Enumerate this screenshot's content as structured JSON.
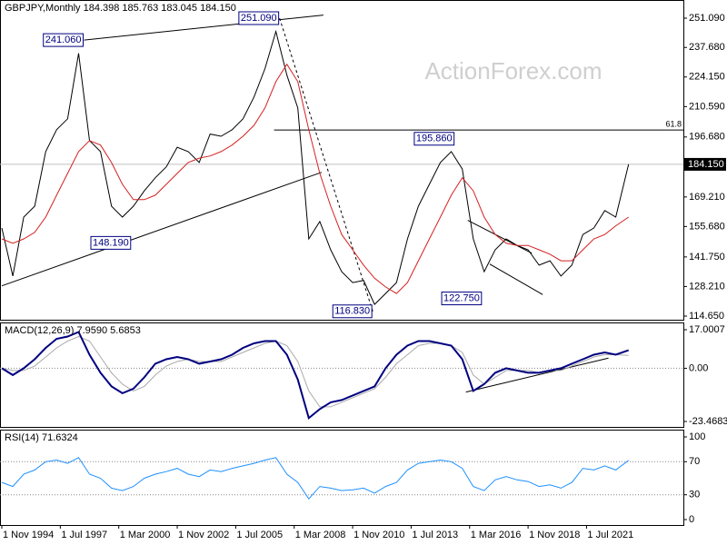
{
  "chart_data": [
    {
      "type": "line",
      "title": "GBPJPY,Monthly  184.398 185.763 183.045 184.150",
      "watermark": "ActionForex.com",
      "x": [
        "1 Nov 1994",
        "1 May 1995",
        "1 Nov 1995",
        "1 May 1996",
        "1 Nov 1996",
        "1 May 1997",
        "1 Nov 1997",
        "1 May 1998",
        "1 Nov 1998",
        "1 May 1999",
        "1 Nov 1999",
        "1 May 2000",
        "1 Nov 2000",
        "1 May 2001",
        "1 Nov 2001",
        "1 May 2002",
        "1 Nov 2002",
        "1 May 2003",
        "1 Nov 2003",
        "1 May 2004",
        "1 Nov 2004",
        "1 May 2005",
        "1 Nov 2005",
        "1 May 2006",
        "1 Nov 2006",
        "1 May 2007",
        "1 Nov 2007",
        "1 May 2008",
        "1 Nov 2008",
        "1 May 2009",
        "1 Nov 2009",
        "1 May 2010",
        "1 Nov 2010",
        "1 May 2011",
        "1 Nov 2011",
        "1 May 2012",
        "1 Nov 2012",
        "1 May 2013",
        "1 Nov 2013",
        "1 May 2014",
        "1 Nov 2014",
        "1 May 2015",
        "1 Nov 2015",
        "1 May 2016",
        "1 Nov 2016",
        "1 May 2017",
        "1 Nov 2017",
        "1 May 2018",
        "1 Nov 2018",
        "1 May 2019",
        "1 Nov 2019",
        "1 May 2020",
        "1 Nov 2020",
        "1 May 2021",
        "1 Nov 2021",
        "1 May 2022",
        "1 Nov 2022",
        "1 Jun 2023"
      ],
      "series": [
        {
          "color": "#000000",
          "width": 1,
          "values": [
            155,
            133,
            160,
            165,
            190,
            200,
            205,
            235,
            195,
            190,
            165,
            160,
            165,
            172,
            178,
            183,
            192,
            190,
            185,
            198,
            197,
            200,
            205,
            215,
            228,
            245,
            225,
            210,
            150,
            158,
            145,
            135,
            130,
            131,
            120,
            125,
            130,
            150,
            165,
            175,
            185,
            190,
            182,
            150,
            135,
            145,
            150,
            147,
            145,
            138,
            140,
            133,
            138,
            152,
            155,
            163,
            160,
            184.15
          ]
        },
        {
          "color": "#d42020",
          "width": 1,
          "values": [
            150,
            148,
            150,
            153,
            160,
            170,
            180,
            190,
            195,
            193,
            185,
            175,
            168,
            168,
            170,
            175,
            180,
            185,
            187,
            188,
            190,
            193,
            197,
            202,
            210,
            222,
            230,
            222,
            200,
            180,
            165,
            152,
            145,
            138,
            132,
            128,
            125,
            130,
            140,
            150,
            160,
            170,
            178,
            172,
            160,
            152,
            148,
            147,
            147,
            145,
            143,
            140,
            140,
            145,
            150,
            152,
            156,
            160
          ]
        }
      ],
      "xlim": [
        "1 Oct 1994",
        "1 Dec 2025"
      ],
      "ylim": [
        112.99,
        259.41
      ],
      "grid": false,
      "yticks": [
        {
          "value": 251.09,
          "label": "251.090"
        },
        {
          "value": 237.68,
          "label": "237.680"
        },
        {
          "value": 224.15,
          "label": "224.150"
        },
        {
          "value": 210.59,
          "label": "210.590"
        },
        {
          "value": 196.68,
          "label": "196.680"
        },
        {
          "value": 169.21,
          "label": "169.210"
        },
        {
          "value": 155.68,
          "label": "155.680"
        },
        {
          "value": 141.75,
          "label": "141.750"
        },
        {
          "value": 128.21,
          "label": "128.210"
        },
        {
          "value": 114.65,
          "label": "114.650"
        }
      ],
      "last": {
        "value": 184.15,
        "label": "184.150"
      },
      "hlines": [
        {
          "from": "1 Apr 2007",
          "value": 199.9,
          "label": "61.8"
        }
      ],
      "annotations": [
        {
          "x": "1 Aug 1998",
          "value": 241.06,
          "label": "241.060"
        },
        {
          "x": "1 Oct 2000",
          "value": 148.19,
          "label": "148.190"
        },
        {
          "x": "1 Jul 2007",
          "value": 251.09,
          "label": "251.090"
        },
        {
          "x": "1 Oct 2011",
          "value": 116.83,
          "label": "116.830"
        },
        {
          "x": "1 Jul 2015",
          "value": 195.86,
          "label": "195.860"
        },
        {
          "x": "1 Oct 2016",
          "value": 122.75,
          "label": "122.750"
        }
      ],
      "trendlines": [
        {
          "x": [
            "1 Aug 1998",
            "1 Jul 2009"
          ],
          "values": [
            241.06,
            252.5
          ],
          "style": "solid"
        },
        {
          "x": [
            "1 Nov 1994",
            "1 Jun 2009"
          ],
          "values": [
            128.5,
            180.5
          ],
          "style": "solid"
        },
        {
          "x": [
            "1 Jul 2007",
            "1 Oct 2011"
          ],
          "values": [
            251.09,
            116.83
          ],
          "style": "dashed"
        },
        {
          "x": [
            "1 Feb 2016",
            "1 Jan 2019"
          ],
          "values": [
            158.5,
            143.5
          ],
          "style": "solid"
        },
        {
          "x": [
            "1 Feb 2017",
            "1 Jul 2019"
          ],
          "values": [
            138.5,
            124.5
          ],
          "style": "solid"
        }
      ]
    },
    {
      "type": "line",
      "title": "MACD(12,26,9) 7.9590 5.6853",
      "x": [
        "1 Nov 1994",
        "1 May 1995",
        "1 Nov 1995",
        "1 May 1996",
        "1 Nov 1996",
        "1 May 1997",
        "1 Nov 1997",
        "1 May 1998",
        "1 Nov 1998",
        "1 May 1999",
        "1 Nov 1999",
        "1 May 2000",
        "1 Nov 2000",
        "1 May 2001",
        "1 Nov 2001",
        "1 May 2002",
        "1 Nov 2002",
        "1 May 2003",
        "1 Nov 2003",
        "1 May 2004",
        "1 Nov 2004",
        "1 May 2005",
        "1 Nov 2005",
        "1 May 2006",
        "1 Nov 2006",
        "1 May 2007",
        "1 Nov 2007",
        "1 May 2008",
        "1 Nov 2008",
        "1 May 2009",
        "1 Nov 2009",
        "1 May 2010",
        "1 Nov 2010",
        "1 May 2011",
        "1 Nov 2011",
        "1 May 2012",
        "1 Nov 2012",
        "1 May 2013",
        "1 Nov 2013",
        "1 May 2014",
        "1 Nov 2014",
        "1 May 2015",
        "1 Nov 2015",
        "1 May 2016",
        "1 Nov 2016",
        "1 May 2017",
        "1 Nov 2017",
        "1 May 2018",
        "1 Nov 2018",
        "1 May 2019",
        "1 Nov 2019",
        "1 May 2020",
        "1 Nov 2020",
        "1 May 2021",
        "1 Nov 2021",
        "1 May 2022",
        "1 Nov 2022",
        "1 Jun 2023"
      ],
      "series": [
        {
          "color": "#aaaaaa",
          "width": 1,
          "values": [
            0,
            -1,
            -1,
            1,
            5,
            9,
            12,
            14,
            12,
            5,
            -2,
            -7,
            -10,
            -8,
            -3,
            1,
            3,
            4,
            3,
            3,
            3,
            5,
            7,
            9,
            11,
            12,
            10,
            3,
            -10,
            -17,
            -17,
            -15,
            -13,
            -11,
            -9,
            -4,
            2,
            6,
            10,
            11,
            11,
            10,
            7,
            -3,
            -7,
            -4,
            -1,
            -1,
            -1,
            -2,
            -1,
            -1,
            1,
            3,
            5,
            6,
            6,
            5.6853
          ]
        },
        {
          "color": "#000080",
          "width": 2,
          "values": [
            0,
            -3,
            0,
            4,
            9,
            13,
            14,
            16,
            6,
            -2,
            -8,
            -11,
            -9,
            -4,
            2,
            4,
            5,
            4,
            2,
            3,
            4,
            6,
            9,
            11,
            12,
            12,
            6,
            -5,
            -22,
            -18,
            -15,
            -14,
            -12,
            -10,
            -8,
            0,
            6,
            10,
            12,
            12,
            11,
            10,
            4,
            -10,
            -7,
            -2,
            0,
            -1,
            -2,
            -2,
            -1,
            0,
            2,
            4,
            6,
            7,
            6,
            7.959
          ]
        }
      ],
      "xlim": [
        "1 Oct 1994",
        "1 Dec 2025"
      ],
      "ylim": [
        -25.87,
        20.21
      ],
      "grid": true,
      "yticks": [
        17.0007,
        {
          "value": 0,
          "label": "0.00"
        },
        -23.4683
      ],
      "trendlines": [
        {
          "x": [
            "1 Jan 2016",
            "1 Jul 2022"
          ],
          "values": [
            -10.5,
            4.5
          ],
          "style": "solid"
        }
      ]
    },
    {
      "type": "line",
      "title": "RSI(14) 71.6324",
      "x": [
        "1 Nov 1994",
        "1 May 1995",
        "1 Nov 1995",
        "1 May 1996",
        "1 Nov 1996",
        "1 May 1997",
        "1 Nov 1997",
        "1 May 1998",
        "1 Nov 1998",
        "1 May 1999",
        "1 Nov 1999",
        "1 May 2000",
        "1 Nov 2000",
        "1 May 2001",
        "1 Nov 2001",
        "1 May 2002",
        "1 Nov 2002",
        "1 May 2003",
        "1 Nov 2003",
        "1 May 2004",
        "1 Nov 2004",
        "1 May 2005",
        "1 Nov 2005",
        "1 May 2006",
        "1 Nov 2006",
        "1 May 2007",
        "1 Nov 2007",
        "1 May 2008",
        "1 Nov 2008",
        "1 May 2009",
        "1 Nov 2009",
        "1 May 2010",
        "1 Nov 2010",
        "1 May 2011",
        "1 Nov 2011",
        "1 May 2012",
        "1 Nov 2012",
        "1 May 2013",
        "1 Nov 2013",
        "1 May 2014",
        "1 Nov 2014",
        "1 May 2015",
        "1 Nov 2015",
        "1 May 2016",
        "1 Nov 2016",
        "1 May 2017",
        "1 Nov 2017",
        "1 May 2018",
        "1 Nov 2018",
        "1 May 2019",
        "1 Nov 2019",
        "1 May 2020",
        "1 Nov 2020",
        "1 May 2021",
        "1 Nov 2021",
        "1 May 2022",
        "1 Nov 2022",
        "1 Jun 2023"
      ],
      "series": [
        {
          "color": "#1e90ff",
          "width": 1,
          "values": [
            45,
            40,
            55,
            60,
            70,
            72,
            68,
            75,
            55,
            50,
            38,
            35,
            40,
            50,
            55,
            58,
            62,
            55,
            52,
            60,
            58,
            62,
            65,
            68,
            72,
            75,
            55,
            45,
            25,
            40,
            38,
            35,
            36,
            38,
            32,
            40,
            45,
            60,
            68,
            70,
            72,
            70,
            62,
            40,
            35,
            48,
            52,
            48,
            46,
            40,
            42,
            38,
            45,
            62,
            60,
            65,
            60,
            71.6324
          ]
        }
      ],
      "xlim": [
        "1 Oct 1994",
        "1 Dec 2025"
      ],
      "ylim": [
        -6.6,
        108.8
      ],
      "grid": true,
      "yticks": [
        100,
        70,
        30,
        0
      ],
      "xticks": [
        "1 Nov 1994",
        "1 Jul 1997",
        "1 Mar 2000",
        "1 Nov 2002",
        "1 Jul 2005",
        "1 Mar 2008",
        "1 Nov 2010",
        "1 Jul 2013",
        "1 Mar 2016",
        "1 Nov 2018",
        "1 Jul 2021"
      ]
    }
  ]
}
